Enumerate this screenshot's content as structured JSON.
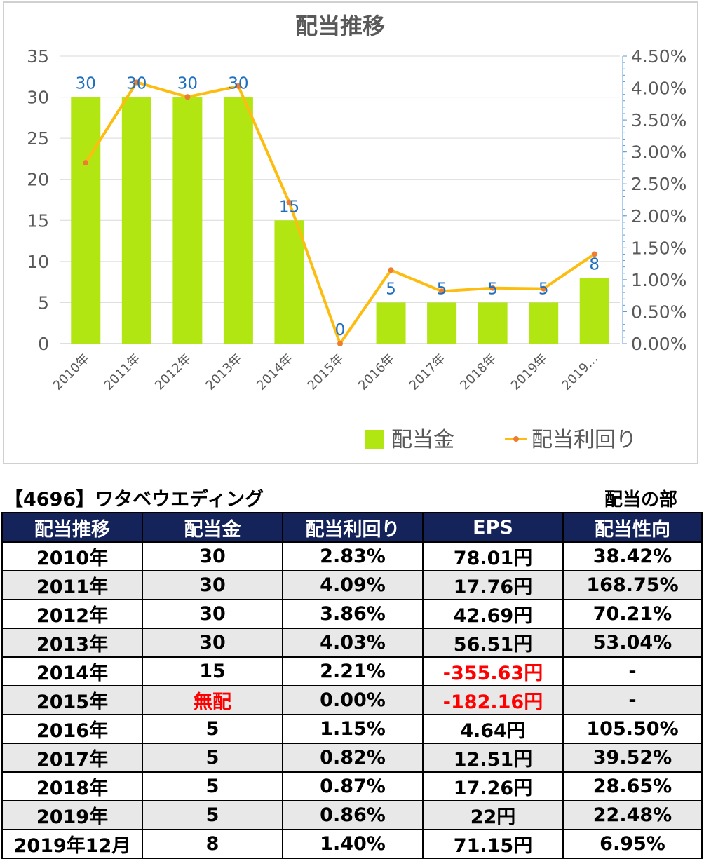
{
  "chart_data": {
    "type": "bar",
    "title": "配当推移",
    "categories": [
      "2010年",
      "2011年",
      "2012年",
      "2013年",
      "2014年",
      "2015年",
      "2016年",
      "2017年",
      "2018年",
      "2019年",
      "2019…"
    ],
    "series": [
      {
        "name": "配当金",
        "type": "bar",
        "axis": "left",
        "color": "#b2e613",
        "values": [
          30,
          30,
          30,
          30,
          15,
          0,
          5,
          5,
          5,
          5,
          8
        ]
      },
      {
        "name": "配当利回り",
        "type": "line",
        "axis": "right",
        "color": "#fdbd10",
        "marker_color": "#ed7d31",
        "values": [
          2.83,
          4.09,
          3.86,
          4.03,
          2.21,
          0.0,
          1.15,
          0.82,
          0.87,
          0.86,
          1.4
        ]
      }
    ],
    "data_labels": [
      "30",
      "30",
      "30",
      "30",
      "15",
      "0",
      "5",
      "5",
      "5",
      "5",
      "8"
    ],
    "left_axis": {
      "ylim": [
        0,
        35
      ],
      "ticks": [
        "0",
        "5",
        "10",
        "15",
        "20",
        "25",
        "30",
        "35"
      ]
    },
    "right_axis": {
      "ylim": [
        0,
        4.5
      ],
      "ticks": [
        "0.00%",
        "0.50%",
        "1.00%",
        "1.50%",
        "2.00%",
        "2.50%",
        "3.00%",
        "3.50%",
        "4.00%",
        "4.50%"
      ]
    },
    "grid": true,
    "legend_position": "bottom-right",
    "label_color": "#1f6fbf"
  },
  "header": {
    "company": "【4696】ワタベウエディング",
    "section": "配当の部"
  },
  "table": {
    "columns": [
      "配当推移",
      "配当金",
      "配当利回り",
      "EPS",
      "配当性向"
    ],
    "rows": [
      {
        "year": "2010年",
        "dividend": "30",
        "yield": "2.83%",
        "eps": "78.01円",
        "payout": "38.42%"
      },
      {
        "year": "2011年",
        "dividend": "30",
        "yield": "4.09%",
        "eps": "17.76円",
        "payout": "168.75%"
      },
      {
        "year": "2012年",
        "dividend": "30",
        "yield": "3.86%",
        "eps": "42.69円",
        "payout": "70.21%"
      },
      {
        "year": "2013年",
        "dividend": "30",
        "yield": "4.03%",
        "eps": "56.51円",
        "payout": "53.04%"
      },
      {
        "year": "2014年",
        "dividend": "15",
        "yield": "2.21%",
        "eps": "-355.63円",
        "payout": "-"
      },
      {
        "year": "2015年",
        "dividend": "無配",
        "yield": "0.00%",
        "eps": "-182.16円",
        "payout": "-"
      },
      {
        "year": "2016年",
        "dividend": "5",
        "yield": "1.15%",
        "eps": "4.64円",
        "payout": "105.50%"
      },
      {
        "year": "2017年",
        "dividend": "5",
        "yield": "0.82%",
        "eps": "12.51円",
        "payout": "39.52%"
      },
      {
        "year": "2018年",
        "dividend": "5",
        "yield": "0.87%",
        "eps": "17.26円",
        "payout": "28.65%"
      },
      {
        "year": "2019年",
        "dividend": "5",
        "yield": "0.86%",
        "eps": "22円",
        "payout": "22.48%"
      },
      {
        "year": "2019年12月",
        "dividend": "8",
        "yield": "1.40%",
        "eps": "71.15円",
        "payout": "6.95%"
      }
    ]
  }
}
